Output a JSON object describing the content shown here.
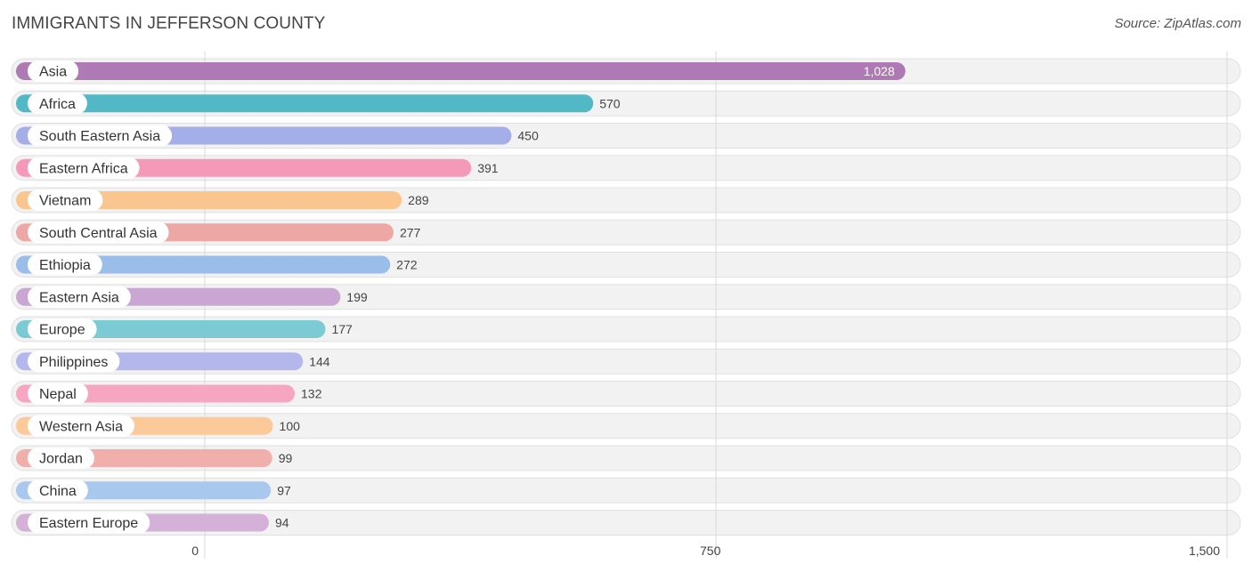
{
  "chart_data": {
    "type": "bar",
    "orientation": "horizontal",
    "title": "IMMIGRANTS IN JEFFERSON COUNTY",
    "source": "Source: ZipAtlas.com",
    "categories": [
      "Asia",
      "Africa",
      "South Eastern Asia",
      "Eastern Africa",
      "Vietnam",
      "South Central Asia",
      "Ethiopia",
      "Eastern Asia",
      "Europe",
      "Philippines",
      "Nepal",
      "Western Asia",
      "Jordan",
      "China",
      "Eastern Europe"
    ],
    "values": [
      1028,
      570,
      450,
      391,
      289,
      277,
      272,
      199,
      177,
      144,
      132,
      100,
      99,
      97,
      94
    ],
    "value_labels": [
      "1,028",
      "570",
      "450",
      "391",
      "289",
      "277",
      "272",
      "199",
      "177",
      "144",
      "132",
      "100",
      "99",
      "97",
      "94"
    ],
    "colors": [
      "#ae7ab4",
      "#52b8c6",
      "#a4aee8",
      "#f599b8",
      "#fbc58f",
      "#eda8a5",
      "#9bbde9",
      "#c9a7d2",
      "#7ccbd4",
      "#b4b7ec",
      "#f7a6c2",
      "#fbca98",
      "#f0afab",
      "#a9c8ee",
      "#d4b2d8"
    ],
    "xlim": [
      0,
      1500
    ],
    "xticks": [
      0,
      750,
      1500
    ],
    "xtick_labels": [
      "0",
      "750",
      "1,500"
    ],
    "grid": true,
    "xlabel": "",
    "ylabel": ""
  }
}
